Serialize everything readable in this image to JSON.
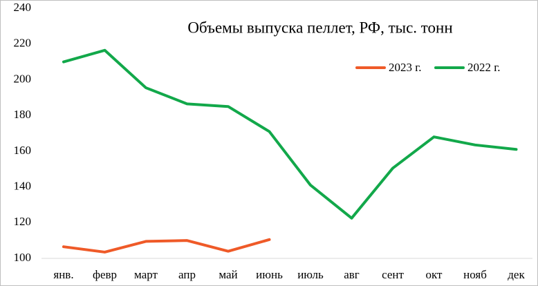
{
  "chart_data": {
    "type": "line",
    "title": "Объемы выпуска пеллет, РФ, тыс. тонн",
    "categories": [
      "янв.",
      "февр",
      "март",
      "апр",
      "май",
      "июнь",
      "июль",
      "авг",
      "сент",
      "окт",
      "нояб",
      "дек"
    ],
    "series": [
      {
        "name": "2023 г.",
        "color": "#ef5a28",
        "values": [
          106.5,
          103.5,
          109.5,
          110,
          104,
          110.5,
          null,
          null,
          null,
          null,
          null,
          null
        ]
      },
      {
        "name": "2022 г.",
        "color": "#12a84a",
        "values": [
          210,
          216.5,
          195.5,
          186.5,
          185,
          171,
          141,
          122.5,
          150.5,
          168,
          163.5,
          161
        ]
      }
    ],
    "ylim": [
      100,
      240
    ],
    "yticks": [
      100,
      120,
      140,
      160,
      180,
      200,
      220,
      240
    ],
    "grid": false
  }
}
